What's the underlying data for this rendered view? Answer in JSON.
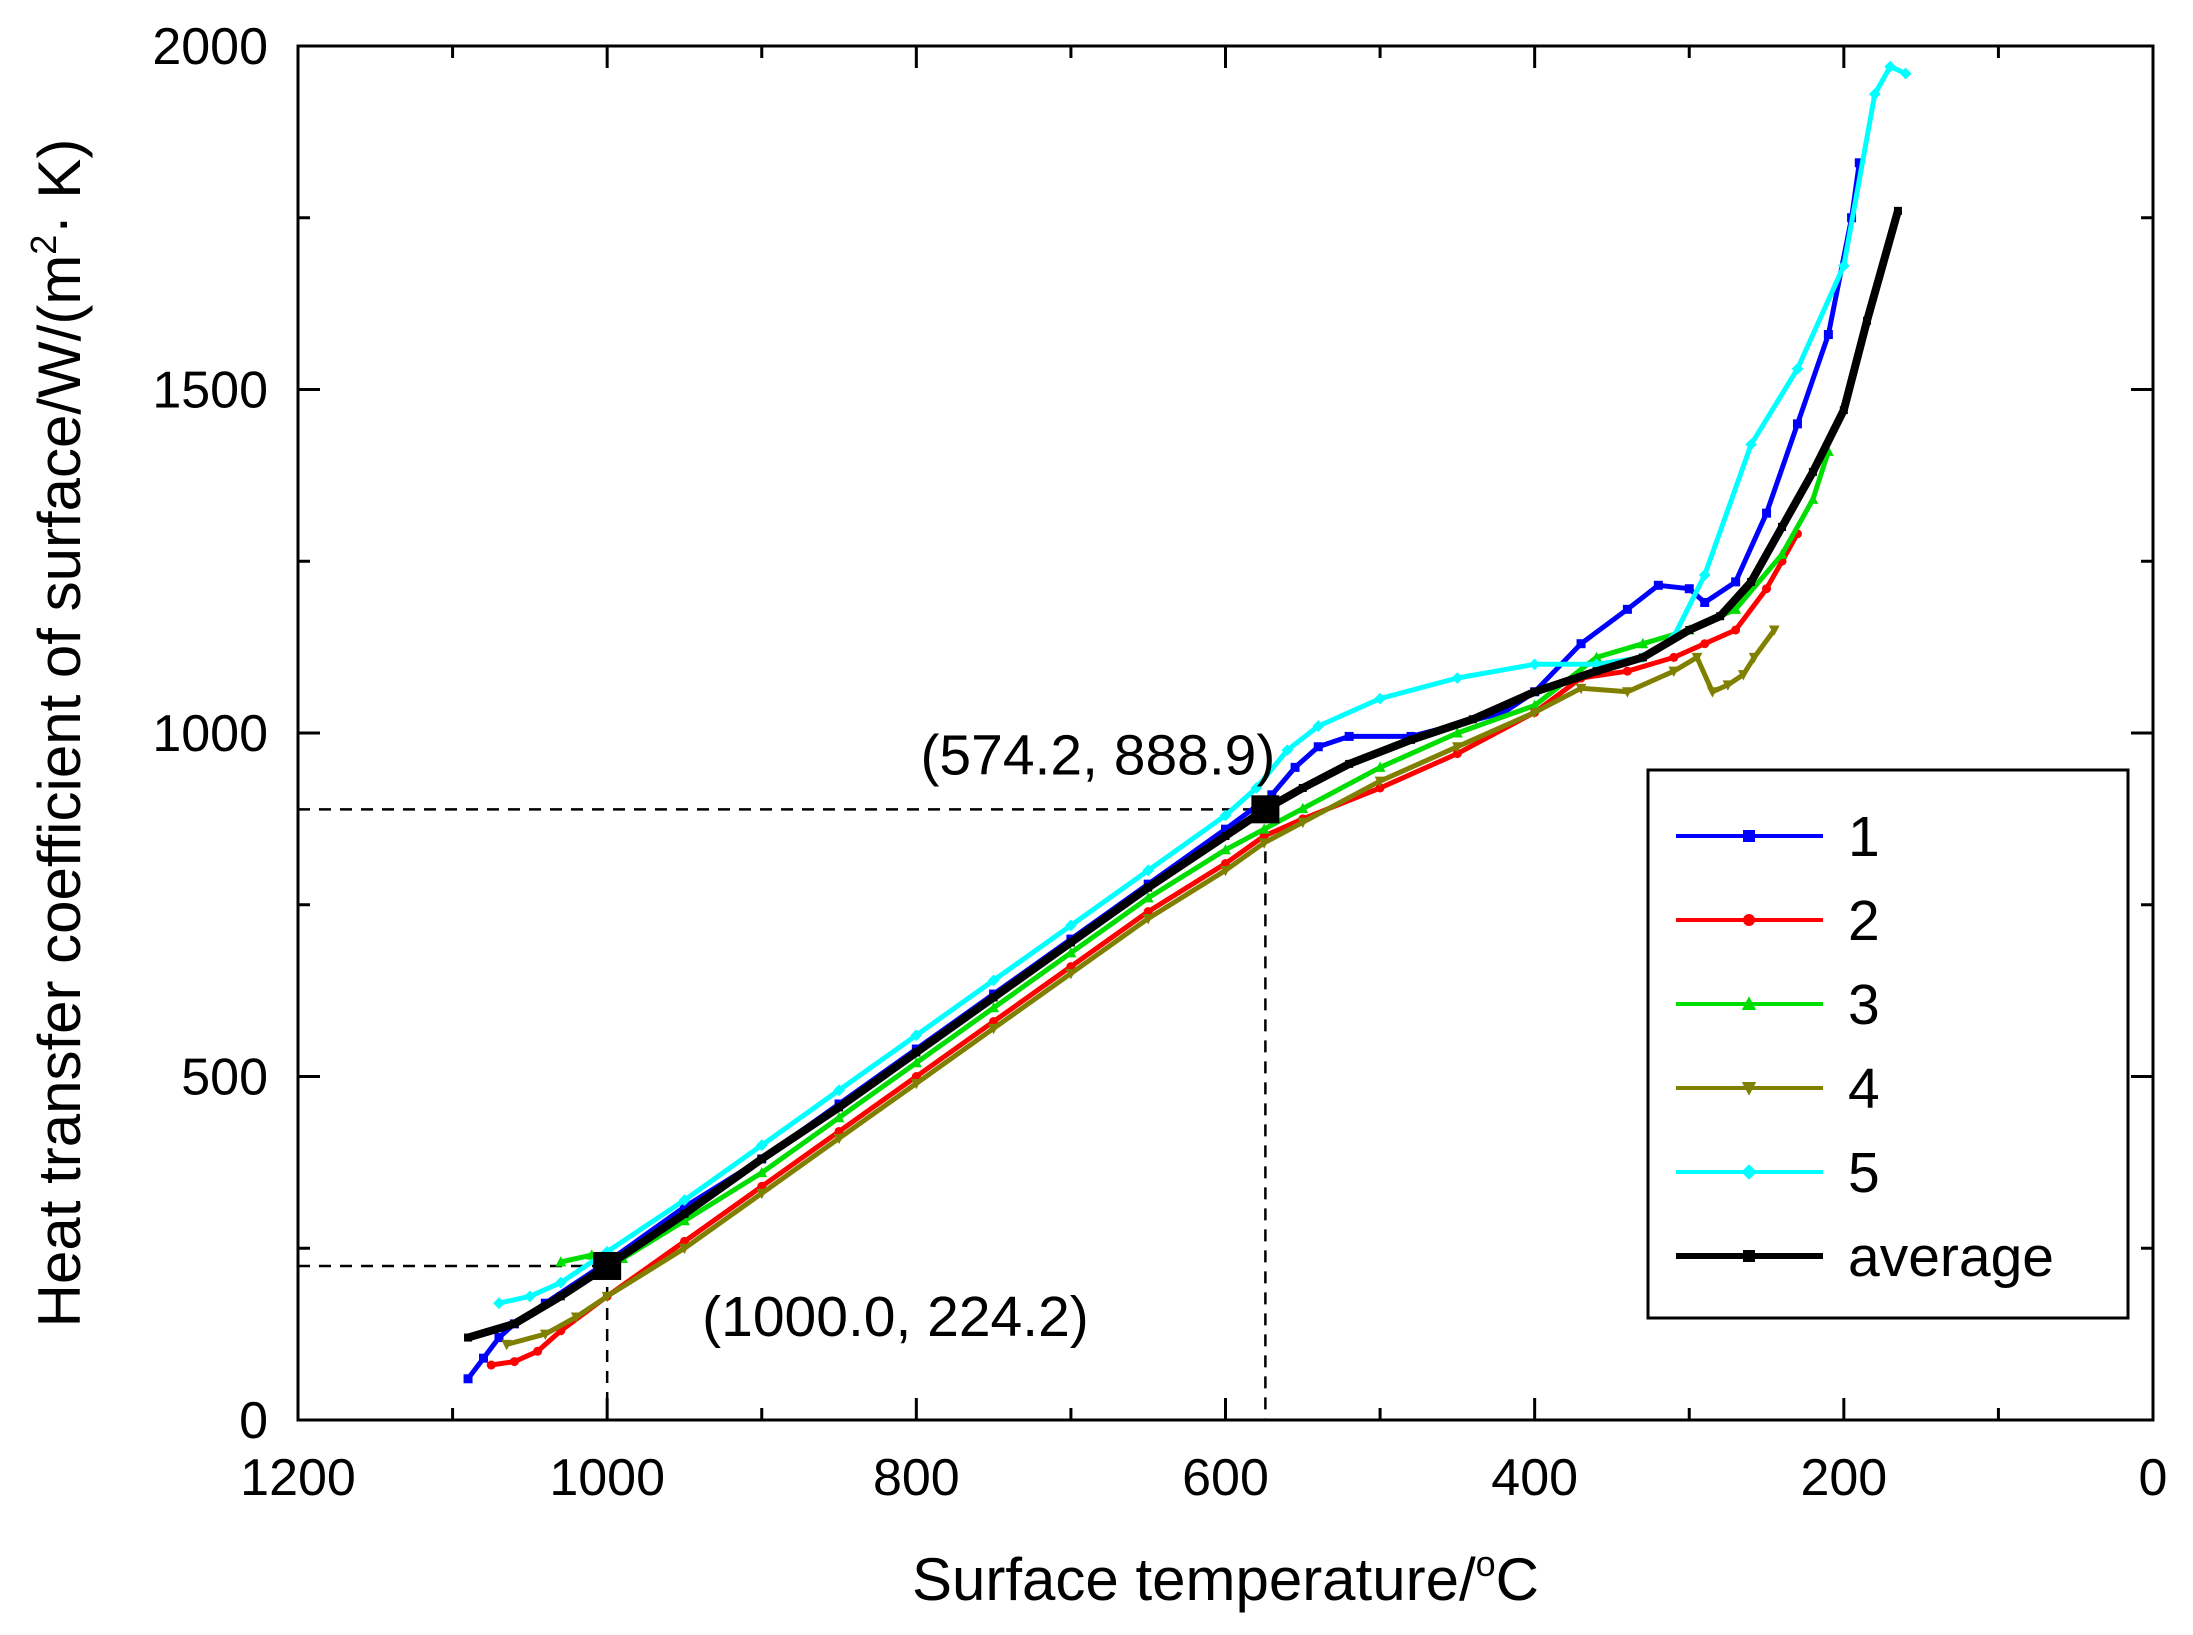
{
  "chart_data": {
    "type": "line",
    "xlabel": "Surface  temperature/",
    "xlabel_unit": "C",
    "xlabel_sup": "o",
    "ylabel": "Heat transfer coefficient of surface/W/(m",
    "ylabel_sup": "2",
    "ylabel_tail": "K)",
    "ylabel_dot": "·",
    "xlim": [
      1200,
      0
    ],
    "ylim": [
      0,
      2000
    ],
    "xticks": [
      1200,
      1000,
      800,
      600,
      400,
      200,
      0
    ],
    "xtick_labels": [
      "1200",
      "1000",
      "800",
      "600",
      "400",
      "200",
      "0"
    ],
    "yticks": [
      0,
      500,
      1000,
      1500,
      2000
    ],
    "ytick_labels": [
      "0",
      "500",
      "1000",
      "1500",
      "2000"
    ],
    "legend_position": "right",
    "series": [
      {
        "name": "1",
        "color": "#0000ff",
        "marker": "square",
        "points": [
          [
            1090,
            60
          ],
          [
            1080,
            90
          ],
          [
            1070,
            120
          ],
          [
            1060,
            140
          ],
          [
            1040,
            170
          ],
          [
            1000,
            230
          ],
          [
            950,
            310
          ],
          [
            900,
            380
          ],
          [
            850,
            460
          ],
          [
            800,
            540
          ],
          [
            750,
            620
          ],
          [
            700,
            700
          ],
          [
            650,
            780
          ],
          [
            600,
            860
          ],
          [
            570,
            910
          ],
          [
            555,
            950
          ],
          [
            540,
            980
          ],
          [
            520,
            995
          ],
          [
            480,
            995
          ],
          [
            420,
            1030
          ],
          [
            400,
            1060
          ],
          [
            370,
            1130
          ],
          [
            340,
            1180
          ],
          [
            320,
            1215
          ],
          [
            300,
            1210
          ],
          [
            290,
            1190
          ],
          [
            270,
            1220
          ],
          [
            250,
            1320
          ],
          [
            230,
            1450
          ],
          [
            210,
            1580
          ],
          [
            195,
            1750
          ],
          [
            190,
            1830
          ]
        ]
      },
      {
        "name": "2",
        "color": "#ff0000",
        "marker": "circle",
        "points": [
          [
            1075,
            80
          ],
          [
            1060,
            85
          ],
          [
            1045,
            100
          ],
          [
            1030,
            130
          ],
          [
            1000,
            180
          ],
          [
            950,
            260
          ],
          [
            900,
            340
          ],
          [
            850,
            420
          ],
          [
            800,
            500
          ],
          [
            750,
            580
          ],
          [
            700,
            660
          ],
          [
            650,
            740
          ],
          [
            600,
            810
          ],
          [
            575,
            850
          ],
          [
            550,
            875
          ],
          [
            500,
            920
          ],
          [
            450,
            970
          ],
          [
            400,
            1030
          ],
          [
            370,
            1080
          ],
          [
            340,
            1090
          ],
          [
            310,
            1110
          ],
          [
            290,
            1130
          ],
          [
            270,
            1150
          ],
          [
            250,
            1210
          ],
          [
            240,
            1250
          ],
          [
            230,
            1290
          ]
        ]
      },
      {
        "name": "3",
        "color": "#00dd00",
        "marker": "triangle-up",
        "points": [
          [
            1030,
            230
          ],
          [
            1010,
            240
          ],
          [
            990,
            235
          ],
          [
            950,
            290
          ],
          [
            900,
            360
          ],
          [
            850,
            440
          ],
          [
            800,
            520
          ],
          [
            750,
            600
          ],
          [
            700,
            680
          ],
          [
            650,
            760
          ],
          [
            600,
            830
          ],
          [
            575,
            860
          ],
          [
            550,
            890
          ],
          [
            500,
            950
          ],
          [
            450,
            1000
          ],
          [
            400,
            1040
          ],
          [
            360,
            1110
          ],
          [
            330,
            1130
          ],
          [
            300,
            1150
          ],
          [
            270,
            1180
          ],
          [
            240,
            1260
          ],
          [
            220,
            1340
          ],
          [
            210,
            1410
          ]
        ]
      },
      {
        "name": "4",
        "color": "#808000",
        "marker": "triangle-down",
        "points": [
          [
            1065,
            110
          ],
          [
            1040,
            125
          ],
          [
            1020,
            150
          ],
          [
            1000,
            180
          ],
          [
            950,
            250
          ],
          [
            900,
            330
          ],
          [
            850,
            410
          ],
          [
            800,
            490
          ],
          [
            750,
            570
          ],
          [
            700,
            650
          ],
          [
            650,
            730
          ],
          [
            600,
            800
          ],
          [
            575,
            840
          ],
          [
            550,
            870
          ],
          [
            500,
            930
          ],
          [
            450,
            980
          ],
          [
            400,
            1030
          ],
          [
            370,
            1065
          ],
          [
            340,
            1060
          ],
          [
            310,
            1090
          ],
          [
            295,
            1110
          ],
          [
            285,
            1060
          ],
          [
            275,
            1070
          ],
          [
            265,
            1085
          ],
          [
            258,
            1110
          ],
          [
            245,
            1150
          ]
        ]
      },
      {
        "name": "5",
        "color": "#00ffff",
        "marker": "diamond",
        "points": [
          [
            1070,
            170
          ],
          [
            1050,
            180
          ],
          [
            1030,
            200
          ],
          [
            1000,
            245
          ],
          [
            950,
            320
          ],
          [
            900,
            400
          ],
          [
            850,
            480
          ],
          [
            800,
            560
          ],
          [
            750,
            640
          ],
          [
            700,
            720
          ],
          [
            650,
            800
          ],
          [
            600,
            880
          ],
          [
            580,
            920
          ],
          [
            560,
            975
          ],
          [
            540,
            1010
          ],
          [
            500,
            1050
          ],
          [
            450,
            1080
          ],
          [
            400,
            1100
          ],
          [
            360,
            1100
          ],
          [
            330,
            1110
          ],
          [
            310,
            1140
          ],
          [
            290,
            1230
          ],
          [
            260,
            1420
          ],
          [
            230,
            1530
          ],
          [
            200,
            1680
          ],
          [
            180,
            1930
          ],
          [
            170,
            1970
          ],
          [
            160,
            1960
          ]
        ]
      },
      {
        "name": "average",
        "color": "#000000",
        "marker": "square",
        "points": [
          [
            1090,
            120
          ],
          [
            1060,
            140
          ],
          [
            1030,
            180
          ],
          [
            1000,
            224.2
          ],
          [
            950,
            300
          ],
          [
            900,
            380
          ],
          [
            850,
            455
          ],
          [
            800,
            535
          ],
          [
            750,
            615
          ],
          [
            700,
            695
          ],
          [
            650,
            775
          ],
          [
            600,
            850
          ],
          [
            574.2,
            888.9
          ],
          [
            550,
            920
          ],
          [
            520,
            955
          ],
          [
            480,
            990
          ],
          [
            440,
            1020
          ],
          [
            400,
            1060
          ],
          [
            360,
            1090
          ],
          [
            330,
            1110
          ],
          [
            300,
            1150
          ],
          [
            280,
            1170
          ],
          [
            260,
            1220
          ],
          [
            240,
            1300
          ],
          [
            220,
            1380
          ],
          [
            200,
            1470
          ],
          [
            185,
            1600
          ],
          [
            165,
            1760
          ]
        ]
      }
    ],
    "annotations": [
      {
        "x": 574.2,
        "y": 888.9,
        "label": "(574.2, 888.9)"
      },
      {
        "x": 1000.0,
        "y": 224.2,
        "label": "(1000.0, 224.2)"
      }
    ]
  }
}
